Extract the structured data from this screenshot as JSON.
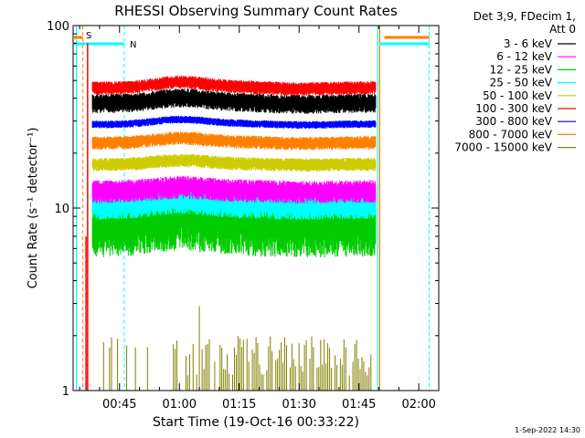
{
  "chart_data": {
    "type": "line",
    "title": "RHESSI Observing Summary Count Rates",
    "xlabel": "Start Time (19-Oct-16 00:33:22)",
    "ylabel": "Count Rate (s⁻¹ detector⁻¹)",
    "yscale": "log",
    "ylim": [
      1,
      100
    ],
    "xlim_minutes": [
      33.37,
      125.0
    ],
    "x_ticks": [
      {
        "min": 45,
        "label": "00:45"
      },
      {
        "min": 60,
        "label": "01:00"
      },
      {
        "min": 75,
        "label": "01:15"
      },
      {
        "min": 90,
        "label": "01:30"
      },
      {
        "min": 105,
        "label": "01:45"
      },
      {
        "min": 120,
        "label": "02:00"
      }
    ],
    "y_ticks": [
      {
        "v": 1,
        "label": "1"
      },
      {
        "v": 10,
        "label": "10"
      },
      {
        "v": 100,
        "label": "100"
      }
    ],
    "info_lines": [
      "Det 3,9, FDecim 1,",
      "Att 0"
    ],
    "legend_position": "right",
    "series": [
      {
        "name": "3 - 6 keV",
        "color": "#000000",
        "base": 38,
        "amp": 6,
        "noise": 0.1
      },
      {
        "name": "6 - 12 keV",
        "color": "#ff00ff",
        "base": 12.5,
        "amp": 1.5,
        "noise": 0.12
      },
      {
        "name": "12 - 25 keV",
        "color": "#00cc00",
        "base": 8.5,
        "amp": 1.5,
        "noise": 0.3
      },
      {
        "name": "25 - 50 keV",
        "color": "#00ffff",
        "base": 10.5,
        "amp": 1.5,
        "noise": 0.14
      },
      {
        "name": "50 - 100 keV",
        "color": "#cccc00",
        "base": 17.5,
        "amp": 2.0,
        "noise": 0.07
      },
      {
        "name": "100 - 300 keV",
        "color": "#ff0000",
        "base": 46,
        "amp": 8,
        "noise": 0.07
      },
      {
        "name": "300 - 800 keV",
        "color": "#0000ff",
        "base": 29,
        "amp": 4,
        "noise": 0.04
      },
      {
        "name": "800 - 7000 keV",
        "color": "#ff8000",
        "base": 23,
        "amp": 3,
        "noise": 0.07
      },
      {
        "name": "7000 - 15000 keV",
        "color": "#808000",
        "base": 1.5,
        "amp": 0,
        "noise": 0.0
      }
    ],
    "markers": [
      {
        "label": "S",
        "color": "#ff8000"
      },
      {
        "label": "N",
        "color": "#00ffff"
      }
    ],
    "footer": "1-Sep-2022 14:30"
  }
}
